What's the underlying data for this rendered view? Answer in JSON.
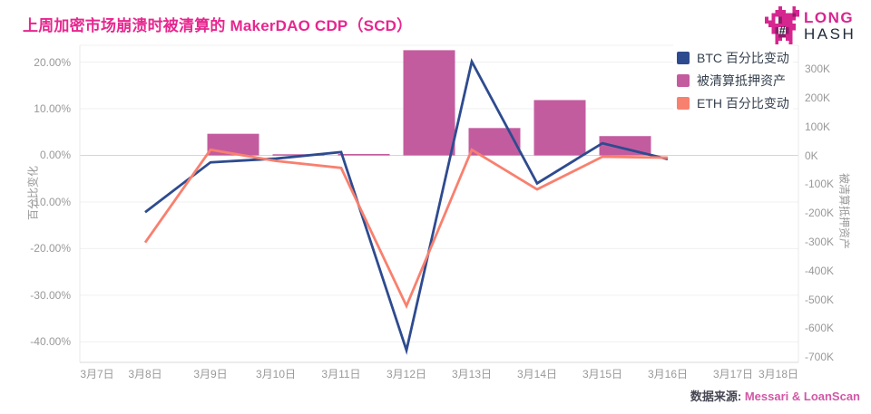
{
  "header": {
    "title": "上周加密市场崩溃时被清算的 MakerDAO CDP（SCD）",
    "logo": {
      "line1": "LONG",
      "line2": "HASH"
    }
  },
  "legend": {
    "items": [
      {
        "label": "BTC 百分比变动",
        "color": "#2E4B8F"
      },
      {
        "label": "被清算抵押资产",
        "color": "#C35C9F"
      },
      {
        "label": "ETH 百分比变动",
        "color": "#F8806F"
      }
    ]
  },
  "footer": {
    "source_label": "数据来源:",
    "source_value": "Messari & LoanScan"
  },
  "colors": {
    "title": "#E7268F",
    "btc_line": "#2E4B8F",
    "eth_line": "#F8806F",
    "bar": "#C35C9F",
    "grid": "#F0F0F0",
    "zero_line": "#D6D6D6",
    "axis_text": "#999999"
  },
  "chart_data": {
    "type": "combo: bar + line, dual y-axis",
    "title": "上周加密市场崩溃时被清算的 MakerDAO CDP（SCD）",
    "categories": [
      "3月7日",
      "3月8日",
      "3月9日",
      "3月10日",
      "3月11日",
      "3月12日",
      "3月13日",
      "3月14日",
      "3月15日",
      "3月16日",
      "3月17日",
      "3月18日"
    ],
    "left_axis": {
      "label": "百分比变化",
      "tick_labels": [
        "20.00%",
        "10.00%",
        "0.00%",
        "-10.00%",
        "-20.00%",
        "-30.00%",
        "-40.00%"
      ],
      "tick_values": [
        20,
        10,
        0,
        -10,
        -20,
        -30,
        -40
      ],
      "range": [
        -44.4,
        23.6
      ],
      "unit": "percent"
    },
    "right_axis": {
      "label": "被清算抵押资产",
      "tick_labels": [
        "300K",
        "200K",
        "100K",
        "0K",
        "-100K",
        "-200K",
        "-300K",
        "-400K",
        "-500K",
        "-600K",
        "-700K"
      ],
      "tick_values": [
        300,
        200,
        100,
        0,
        -100,
        -200,
        -300,
        -400,
        -500,
        -600,
        -700
      ],
      "range": [
        -718,
        382
      ],
      "unit": "thousands (K)"
    },
    "series": [
      {
        "name": "BTC 百分比变动",
        "type": "line",
        "axis": "left",
        "color": "#2E4B8F",
        "start_index": 1,
        "values": [
          -12.2,
          -1.5,
          -0.7,
          0.7,
          -41.8,
          20.1,
          -6.0,
          2.6,
          -0.8
        ]
      },
      {
        "name": "被清算抵押资产",
        "type": "bar",
        "axis": "right",
        "color": "#C35C9F",
        "start_index": 2,
        "values": [
          75,
          4,
          5,
          365,
          95,
          192,
          67
        ]
      },
      {
        "name": "ETH 百分比变动",
        "type": "line",
        "axis": "left",
        "color": "#F8806F",
        "start_index": 1,
        "values": [
          -18.7,
          1.2,
          -1.2,
          -2.7,
          -32.3,
          1.2,
          -7.3,
          -0.3,
          -0.5
        ]
      }
    ],
    "grid": true,
    "legend_position": "top-right",
    "notes": "lines span 3月8日–3月16日; bars span 3月9日–3月15日 and are offset slightly right of category centers"
  }
}
